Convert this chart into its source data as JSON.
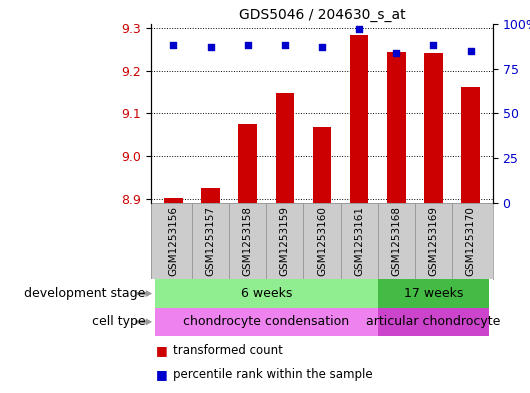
{
  "title": "GDS5046 / 204630_s_at",
  "samples": [
    "GSM1253156",
    "GSM1253157",
    "GSM1253158",
    "GSM1253159",
    "GSM1253160",
    "GSM1253161",
    "GSM1253168",
    "GSM1253169",
    "GSM1253170"
  ],
  "transformed_count": [
    8.902,
    8.924,
    9.075,
    9.148,
    9.068,
    9.285,
    9.245,
    9.242,
    9.163
  ],
  "percentile_rank": [
    88,
    87,
    88,
    88,
    87,
    97,
    84,
    88,
    85
  ],
  "bar_color": "#cc0000",
  "dot_color": "#0000cc",
  "ylim_left": [
    8.89,
    9.31
  ],
  "ylim_right": [
    0,
    100
  ],
  "yticks_left": [
    8.9,
    9.0,
    9.1,
    9.2,
    9.3
  ],
  "yticks_right": [
    0,
    25,
    50,
    75,
    100
  ],
  "ybase": 8.89,
  "development_stages": [
    {
      "label": "6 weeks",
      "start": 0,
      "end": 5,
      "color": "#90ee90"
    },
    {
      "label": "17 weeks",
      "start": 6,
      "end": 8,
      "color": "#44bb44"
    }
  ],
  "cell_types": [
    {
      "label": "chondrocyte condensation",
      "start": 0,
      "end": 5,
      "color": "#ee82ee"
    },
    {
      "label": "articular chondrocyte",
      "start": 6,
      "end": 8,
      "color": "#cc44cc"
    }
  ],
  "dev_stage_label": "development stage",
  "cell_type_label": "cell type",
  "legend_bar_label": "transformed count",
  "legend_dot_label": "percentile rank within the sample",
  "bar_width": 0.5,
  "background_color": "#ffffff",
  "plot_bg_color": "#ffffff",
  "tick_label_color_left": "#cc0000",
  "tick_label_color_right": "#0000cc",
  "label_area_color": "#cccccc",
  "label_area_border": "#888888"
}
